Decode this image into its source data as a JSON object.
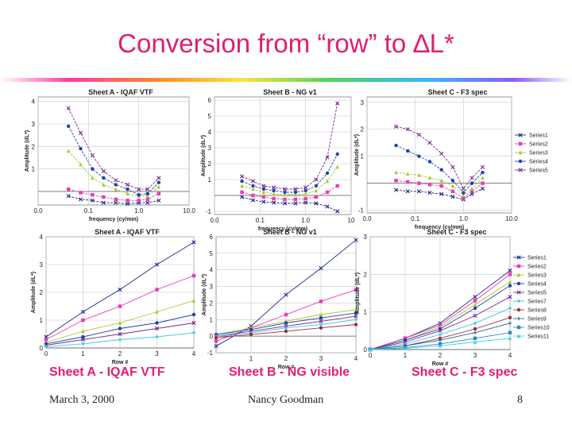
{
  "slide": {
    "title": "Conversion from “row” to ∆L*",
    "captions": [
      "Sheet A - IQAF VTF",
      "Sheet B - NG visible",
      "Sheet C - F3 spec"
    ],
    "footer_date": "March 3, 2000",
    "footer_author": "Nancy Goodman",
    "page_number": "8"
  },
  "colors": {
    "accent": "#e01e6e",
    "series": [
      "#1f2a8c",
      "#e83ab5",
      "#a6c92a",
      "#1f3fb0",
      "#7a2a8c",
      "#3ac8e8",
      "#a02a3a",
      "#2a6a8c",
      "#2a8cc8",
      "#3ad0e8",
      "#c8a0e8"
    ]
  },
  "chart_data": [
    {
      "id": "topA",
      "type": "line",
      "xscale": "log",
      "title": "Sheet A - IQAF VTF",
      "xlabel": "frequency (cy/mm)",
      "ylabel": "Amplitude (dL*)",
      "xlim": [
        0.01,
        10
      ],
      "ylim": [
        -0.6,
        4.2
      ],
      "xticks": [
        0.01,
        0.1,
        1,
        10
      ],
      "xticklabels": [
        "0.0",
        "0.1",
        "1.0",
        "10.0"
      ],
      "yticks": [
        1,
        2,
        3,
        4
      ],
      "yticklabels": [
        "1",
        "2",
        "3",
        "4"
      ],
      "series": [
        {
          "name": "Series1",
          "x": [
            0.04,
            0.07,
            0.12,
            0.2,
            0.35,
            0.6,
            1.0,
            1.5,
            2.5
          ],
          "y": [
            -0.2,
            -0.35,
            -0.4,
            -0.5,
            -0.5,
            -0.55,
            -0.5,
            -0.5,
            -0.4
          ]
        },
        {
          "name": "Series2",
          "x": [
            0.04,
            0.07,
            0.12,
            0.2,
            0.35,
            0.6,
            1.0,
            1.5,
            2.5
          ],
          "y": [
            0.1,
            -0.05,
            -0.15,
            -0.25,
            -0.35,
            -0.4,
            -0.4,
            -0.35,
            -0.1
          ]
        },
        {
          "name": "Series3",
          "x": [
            0.04,
            0.07,
            0.12,
            0.2,
            0.35,
            0.6,
            1.0,
            1.5,
            2.5
          ],
          "y": [
            1.8,
            1.2,
            0.6,
            0.3,
            0.1,
            -0.1,
            -0.2,
            -0.2,
            0.2
          ]
        },
        {
          "name": "Series4",
          "x": [
            0.04,
            0.07,
            0.12,
            0.2,
            0.35,
            0.6,
            1.0,
            1.5,
            2.5
          ],
          "y": [
            2.9,
            1.9,
            1.0,
            0.6,
            0.3,
            0.1,
            -0.15,
            -0.1,
            0.4
          ]
        },
        {
          "name": "Series5",
          "x": [
            0.04,
            0.07,
            0.12,
            0.2,
            0.35,
            0.6,
            1.0,
            1.5,
            2.5
          ],
          "y": [
            3.7,
            2.6,
            1.6,
            0.9,
            0.5,
            0.3,
            0.1,
            0.1,
            0.6
          ]
        }
      ]
    },
    {
      "id": "topB",
      "type": "line",
      "xscale": "log",
      "title": "Sheet B - NG v1",
      "xlabel": "frequency (cy/mm)",
      "ylabel": "Amplitude (dL*)",
      "xlim": [
        0.01,
        10
      ],
      "ylim": [
        -1.2,
        6.2
      ],
      "xticks": [
        0.01,
        0.1,
        1,
        10
      ],
      "xticklabels": [
        "0.0",
        "0.1",
        "1.0",
        "10"
      ],
      "yticks": [
        -1,
        1,
        2,
        3,
        4,
        5,
        6
      ],
      "yticklabels": [
        "-1",
        "1",
        "2",
        "3",
        "4",
        "5",
        "6"
      ],
      "series": [
        {
          "name": "Series1",
          "x": [
            0.04,
            0.07,
            0.12,
            0.2,
            0.35,
            0.6,
            1.0,
            1.7,
            3.0,
            5.0
          ],
          "y": [
            -0.1,
            -0.3,
            -0.4,
            -0.45,
            -0.5,
            -0.5,
            -0.45,
            -0.5,
            -0.7,
            -1.0
          ]
        },
        {
          "name": "Series2",
          "x": [
            0.04,
            0.07,
            0.12,
            0.2,
            0.35,
            0.6,
            1.0,
            1.7,
            3.0,
            5.0
          ],
          "y": [
            0.2,
            0.0,
            -0.1,
            -0.2,
            -0.25,
            -0.25,
            -0.2,
            -0.1,
            0.2,
            0.6
          ]
        },
        {
          "name": "Series3",
          "x": [
            0.04,
            0.07,
            0.12,
            0.2,
            0.35,
            0.6,
            1.0,
            1.7,
            3.0,
            5.0
          ],
          "y": [
            0.6,
            0.4,
            0.2,
            0.1,
            0.05,
            0.05,
            0.1,
            0.3,
            0.9,
            1.8
          ]
        },
        {
          "name": "Series4",
          "x": [
            0.04,
            0.07,
            0.12,
            0.2,
            0.35,
            0.6,
            1.0,
            1.7,
            3.0,
            5.0
          ],
          "y": [
            0.9,
            0.6,
            0.4,
            0.3,
            0.2,
            0.2,
            0.3,
            0.6,
            1.4,
            2.6
          ]
        },
        {
          "name": "Series5",
          "x": [
            0.04,
            0.07,
            0.12,
            0.2,
            0.35,
            0.6,
            1.0,
            1.7,
            3.0,
            5.0
          ],
          "y": [
            1.2,
            0.9,
            0.6,
            0.5,
            0.4,
            0.4,
            0.5,
            1.0,
            2.4,
            5.8
          ]
        }
      ]
    },
    {
      "id": "topC",
      "type": "line",
      "xscale": "log",
      "title": "Sheet C - F3 spec",
      "xlabel": "frequency (cy/mm)",
      "ylabel": "Amplitude (dL*)",
      "xlim": [
        0.01,
        10
      ],
      "ylim": [
        -1.1,
        3.2
      ],
      "xticks": [
        0.01,
        0.1,
        1,
        10
      ],
      "xticklabels": [
        "0.0",
        "0.1",
        "1.0",
        "10.0"
      ],
      "yticks": [
        -1,
        1,
        2,
        3
      ],
      "yticklabels": [
        "-1",
        "1",
        "2",
        "3"
      ],
      "legend": [
        "Series1",
        "Series2",
        "Series3",
        "Series4",
        "Series5"
      ],
      "series": [
        {
          "name": "Series1",
          "x": [
            0.04,
            0.07,
            0.12,
            0.2,
            0.35,
            0.6,
            1.0,
            1.5,
            2.5
          ],
          "y": [
            -0.25,
            -0.3,
            -0.3,
            -0.35,
            -0.4,
            -0.5,
            -0.6,
            -0.4,
            -0.2
          ]
        },
        {
          "name": "Series2",
          "x": [
            0.04,
            0.07,
            0.12,
            0.2,
            0.35,
            0.6,
            1.0,
            1.5,
            2.5
          ],
          "y": [
            0.1,
            0.05,
            0.0,
            -0.05,
            -0.1,
            -0.3,
            -0.55,
            -0.3,
            0.0
          ]
        },
        {
          "name": "Series3",
          "x": [
            0.04,
            0.07,
            0.12,
            0.2,
            0.35,
            0.6,
            1.0,
            1.5,
            2.5
          ],
          "y": [
            0.4,
            0.35,
            0.3,
            0.2,
            0.1,
            -0.1,
            -0.45,
            -0.2,
            0.2
          ]
        },
        {
          "name": "Series4",
          "x": [
            0.04,
            0.07,
            0.12,
            0.2,
            0.35,
            0.6,
            1.0,
            1.5,
            2.5
          ],
          "y": [
            1.4,
            1.2,
            1.0,
            0.8,
            0.5,
            0.1,
            -0.35,
            0.0,
            0.4
          ]
        },
        {
          "name": "Series5",
          "x": [
            0.04,
            0.07,
            0.12,
            0.2,
            0.35,
            0.6,
            1.0,
            1.5,
            2.5
          ],
          "y": [
            2.1,
            2.0,
            1.8,
            1.5,
            1.1,
            0.6,
            -0.2,
            0.2,
            0.6
          ]
        }
      ]
    },
    {
      "id": "botA",
      "type": "line",
      "xscale": "linear",
      "title": "Sheet A - IQAF VTF",
      "xlabel": "Row #",
      "ylabel": "Amplitude (dL*)",
      "xlim": [
        0,
        4
      ],
      "ylim": [
        0,
        4
      ],
      "xticks": [
        0,
        1,
        2,
        3,
        4
      ],
      "xticklabels": [
        "0",
        "1",
        "2",
        "3",
        "4"
      ],
      "yticks": [
        0,
        1,
        2,
        3,
        4
      ],
      "yticklabels": [
        "0",
        "1",
        "2",
        "3",
        "4"
      ],
      "series": [
        {
          "name": "Series1",
          "x": [
            0,
            1,
            2,
            3,
            4
          ],
          "y": [
            0.4,
            1.3,
            2.1,
            3.0,
            3.8
          ]
        },
        {
          "name": "Series2",
          "x": [
            0,
            1,
            2,
            3,
            4
          ],
          "y": [
            0.3,
            1.0,
            1.5,
            2.1,
            2.6
          ]
        },
        {
          "name": "Series3",
          "x": [
            0,
            1,
            2,
            3,
            4
          ],
          "y": [
            0.2,
            0.6,
            0.9,
            1.3,
            1.7
          ]
        },
        {
          "name": "Series4",
          "x": [
            0,
            1,
            2,
            3,
            4
          ],
          "y": [
            0.15,
            0.4,
            0.7,
            0.9,
            1.2
          ]
        },
        {
          "name": "Series5",
          "x": [
            0,
            1,
            2,
            3,
            4
          ],
          "y": [
            0.1,
            0.3,
            0.5,
            0.7,
            0.9
          ]
        },
        {
          "name": "Series6",
          "x": [
            0,
            1,
            2,
            3,
            4
          ],
          "y": [
            0.05,
            0.15,
            0.3,
            0.4,
            0.55
          ]
        }
      ]
    },
    {
      "id": "botB",
      "type": "line",
      "xscale": "linear",
      "title": "Sheet B - NG v1",
      "xlabel": "Row #",
      "ylabel": "Amplitude (dL*)",
      "xlim": [
        0,
        4
      ],
      "ylim": [
        -1,
        6
      ],
      "xticks": [
        1,
        2,
        3,
        4
      ],
      "xticklabels": [
        "1",
        "2",
        "3",
        "4"
      ],
      "yticks": [
        -1,
        0,
        1,
        2,
        3,
        4,
        5,
        6
      ],
      "yticklabels": [
        "-1",
        "0",
        "1",
        "2",
        "3",
        "4",
        "5",
        "6"
      ],
      "series": [
        {
          "name": "Series1",
          "x": [
            0,
            1,
            2,
            3,
            4
          ],
          "y": [
            -0.6,
            0.6,
            2.5,
            4.1,
            5.8
          ]
        },
        {
          "name": "Series2",
          "x": [
            0,
            1,
            2,
            3,
            4
          ],
          "y": [
            -0.3,
            0.5,
            1.3,
            2.1,
            2.8
          ]
        },
        {
          "name": "Series3",
          "x": [
            0,
            1,
            2,
            3,
            4
          ],
          "y": [
            0.1,
            0.5,
            0.9,
            1.3,
            1.6
          ]
        },
        {
          "name": "Series4",
          "x": [
            0,
            1,
            2,
            3,
            4
          ],
          "y": [
            0.1,
            0.4,
            0.8,
            1.1,
            1.4
          ]
        },
        {
          "name": "Series5",
          "x": [
            0,
            1,
            2,
            3,
            4
          ],
          "y": [
            0.0,
            0.3,
            0.6,
            0.9,
            1.2
          ]
        },
        {
          "name": "Series6",
          "x": [
            0,
            1,
            2,
            3,
            4
          ],
          "y": [
            0.0,
            0.2,
            0.5,
            0.7,
            1.0
          ]
        },
        {
          "name": "Series7",
          "x": [
            0,
            1,
            2,
            3,
            4
          ],
          "y": [
            -0.1,
            0.1,
            0.3,
            0.5,
            0.7
          ]
        }
      ]
    },
    {
      "id": "botC",
      "type": "line",
      "xscale": "linear",
      "title": "Sheet C - F3 spec",
      "xlabel": "Row #",
      "ylabel": "Amplitude (dL*)",
      "xlim": [
        0,
        4
      ],
      "ylim": [
        0,
        3
      ],
      "xticks": [
        0,
        1,
        2,
        3,
        4
      ],
      "xticklabels": [
        "0",
        "1",
        "2",
        "3",
        "4"
      ],
      "yticks": [
        0,
        1,
        2,
        3
      ],
      "yticklabels": [
        "0",
        "1",
        "2",
        "3"
      ],
      "legend": [
        "Series1",
        "Series2",
        "Series3",
        "Series4",
        "Series5",
        "Series7",
        "Series8",
        "Series9",
        "Series10",
        "Series11"
      ],
      "series": [
        {
          "name": "Series1",
          "x": [
            0,
            1,
            2,
            3,
            4
          ],
          "y": [
            0,
            0.3,
            0.7,
            1.4,
            2.1
          ]
        },
        {
          "name": "Series2",
          "x": [
            0,
            1,
            2,
            3,
            4
          ],
          "y": [
            0,
            0.3,
            0.65,
            1.3,
            2.0
          ]
        },
        {
          "name": "Series3",
          "x": [
            0,
            1,
            2,
            3,
            4
          ],
          "y": [
            0,
            0.25,
            0.6,
            1.2,
            1.8
          ]
        },
        {
          "name": "Series4",
          "x": [
            0,
            1,
            2,
            3,
            4
          ],
          "y": [
            0,
            0.25,
            0.55,
            1.1,
            1.7
          ]
        },
        {
          "name": "Series5",
          "x": [
            0,
            1,
            2,
            3,
            4
          ],
          "y": [
            0,
            0.2,
            0.5,
            0.9,
            1.4
          ]
        },
        {
          "name": "Series7",
          "x": [
            0,
            1,
            2,
            3,
            4
          ],
          "y": [
            0,
            0.15,
            0.4,
            0.7,
            1.1
          ]
        },
        {
          "name": "Series8",
          "x": [
            0,
            1,
            2,
            3,
            4
          ],
          "y": [
            0,
            0.1,
            0.3,
            0.55,
            0.85
          ]
        },
        {
          "name": "Series9",
          "x": [
            0,
            1,
            2,
            3,
            4
          ],
          "y": [
            0,
            0.1,
            0.25,
            0.45,
            0.7
          ]
        },
        {
          "name": "Series10",
          "x": [
            0,
            1,
            2,
            3,
            4
          ],
          "y": [
            0,
            0.05,
            0.15,
            0.3,
            0.45
          ]
        },
        {
          "name": "Series11",
          "x": [
            0,
            1,
            2,
            3,
            4
          ],
          "y": [
            0,
            0.03,
            0.1,
            0.2,
            0.3
          ]
        }
      ]
    }
  ]
}
